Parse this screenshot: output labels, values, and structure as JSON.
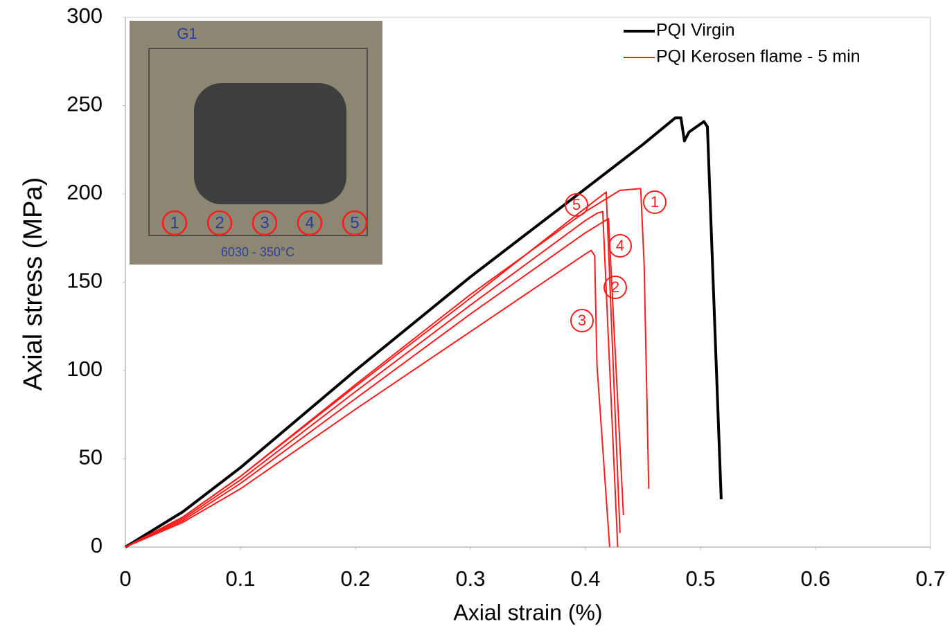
{
  "chart_data": {
    "type": "line",
    "xlabel": "Axial strain (%)",
    "ylabel": "Axial stress (MPa)",
    "xlim": [
      0,
      0.7
    ],
    "xticks": [
      0,
      0.1,
      0.2,
      0.3,
      0.4,
      0.5,
      0.6,
      0.7
    ],
    "ylim": [
      0,
      300
    ],
    "yticks": [
      0,
      50,
      100,
      150,
      200,
      250,
      300
    ],
    "grid": false,
    "legend_position": "upper right",
    "legend": [
      {
        "name": "PQI Virgin",
        "color": "#000000"
      },
      {
        "name": "PQI Kerosen flame - 5 min",
        "color": "#ff1a1a"
      }
    ],
    "series": [
      {
        "color": "#000000",
        "width": 4,
        "x": [
          0,
          0.05,
          0.1,
          0.2,
          0.3,
          0.4,
          0.45,
          0.478,
          0.483,
          0.486,
          0.49,
          0.503,
          0.506,
          0.518
        ],
        "values": [
          0,
          20,
          45,
          100,
          153,
          203,
          228,
          243,
          243,
          230,
          235,
          241,
          238,
          27
        ]
      },
      {
        "color": "#ff1a1a",
        "width": 2,
        "label": "1",
        "x": [
          0,
          0.05,
          0.1,
          0.2,
          0.3,
          0.4,
          0.43,
          0.448,
          0.451,
          0.455
        ],
        "values": [
          0,
          17,
          40,
          92,
          143,
          190,
          202,
          203,
          160,
          33
        ]
      },
      {
        "color": "#ff1a1a",
        "width": 2,
        "label": "2",
        "x": [
          0,
          0.05,
          0.1,
          0.2,
          0.3,
          0.4,
          0.41,
          0.415,
          0.428
        ],
        "values": [
          0,
          16,
          38,
          88,
          137,
          185,
          189,
          190,
          0
        ]
      },
      {
        "color": "#ff1a1a",
        "width": 2,
        "label": "3",
        "x": [
          0,
          0.05,
          0.1,
          0.2,
          0.3,
          0.4,
          0.405,
          0.408,
          0.41,
          0.421
        ],
        "values": [
          0,
          14,
          33,
          78,
          122,
          166,
          168,
          165,
          103,
          0
        ]
      },
      {
        "color": "#ff1a1a",
        "width": 2,
        "label": "4",
        "x": [
          0,
          0.05,
          0.1,
          0.2,
          0.3,
          0.4,
          0.42,
          0.433
        ],
        "values": [
          0,
          15,
          36,
          84,
          132,
          178,
          186,
          18
        ]
      },
      {
        "color": "#ff1a1a",
        "width": 2,
        "label": "5",
        "x": [
          0,
          0.05,
          0.1,
          0.2,
          0.3,
          0.39,
          0.418,
          0.43
        ],
        "values": [
          0,
          17,
          40,
          91,
          141,
          187,
          201,
          8
        ]
      }
    ],
    "inset": {
      "top_text": "G1",
      "bottom_text": "6030 - 350°C",
      "labels": [
        "1",
        "2",
        "3",
        "4",
        "5"
      ]
    }
  }
}
